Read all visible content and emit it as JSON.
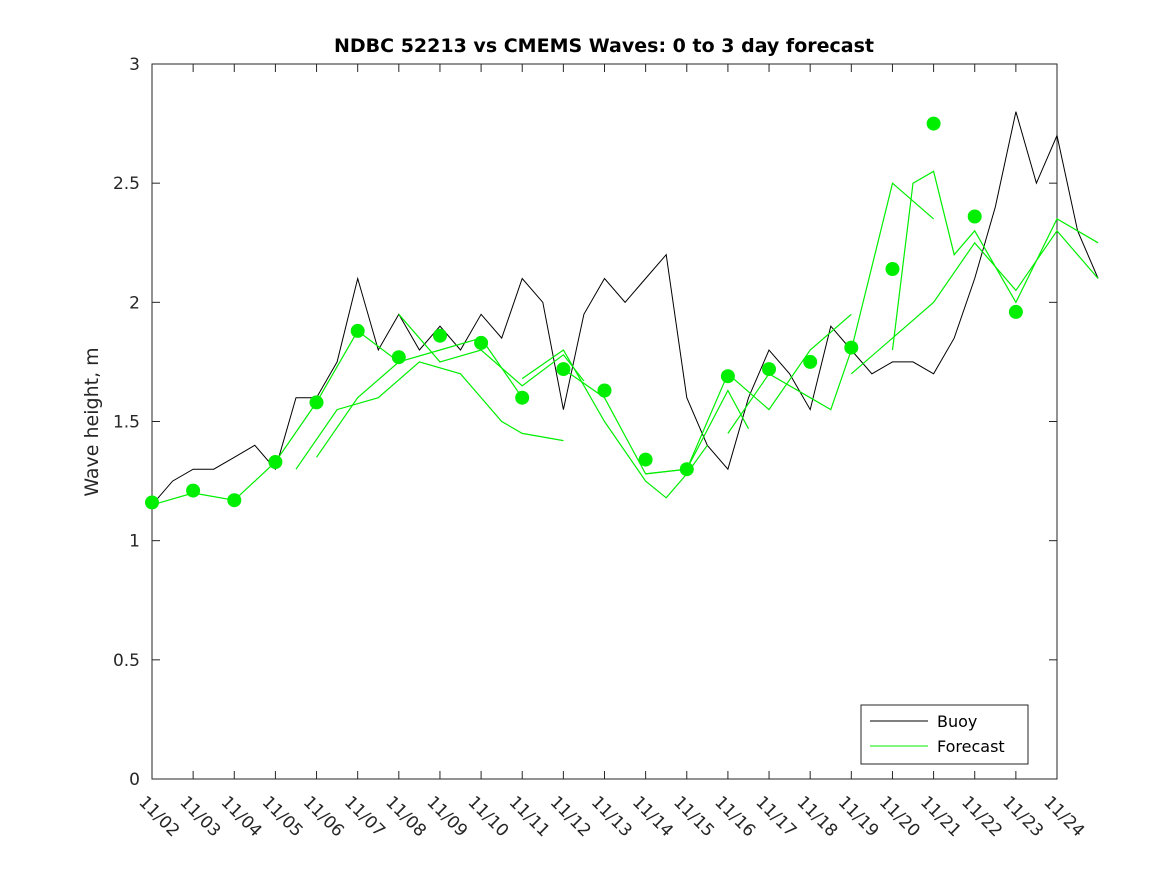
{
  "chart_data": {
    "type": "line",
    "title": "NDBC 52213 vs CMEMS Waves: 0 to 3 day forecast",
    "xlabel": "",
    "ylabel": "Wave height, m",
    "ylim": [
      0,
      3
    ],
    "yticks": [
      "0",
      "0.5",
      "1",
      "1.5",
      "2",
      "2.5",
      "3"
    ],
    "xlim": [
      "11/02",
      "11/24"
    ],
    "xticks": [
      "11/02",
      "11/03",
      "11/04",
      "11/05",
      "11/06",
      "11/07",
      "11/08",
      "11/09",
      "11/10",
      "11/11",
      "11/12",
      "11/13",
      "11/14",
      "11/15",
      "11/16",
      "11/17",
      "11/18",
      "11/19",
      "11/20",
      "11/21",
      "11/22",
      "11/23",
      "11/24"
    ],
    "grid": false,
    "legend": {
      "placement": "bottom-right",
      "entries": [
        "Buoy",
        "Forecast"
      ]
    },
    "colors": {
      "buoy": "#000000",
      "forecast": "#00ee00",
      "axes": "#262626"
    },
    "series": [
      {
        "name": "Buoy",
        "x_days_after_11_02": [
          0,
          0.5,
          1,
          1.5,
          2,
          2.5,
          3,
          3.5,
          4,
          4.5,
          5,
          5.5,
          6,
          6.5,
          7,
          7.5,
          8,
          8.5,
          9,
          9.5,
          10,
          10.5,
          11,
          11.5,
          12,
          12.5,
          13,
          13.5,
          14,
          14.5,
          15,
          15.5,
          16,
          16.5,
          17,
          17.5,
          18,
          18.5,
          19,
          19.5,
          20,
          20.5,
          21,
          21.5,
          22,
          22.5,
          23
        ],
        "values": [
          1.15,
          1.25,
          1.3,
          1.3,
          1.35,
          1.4,
          1.3,
          1.6,
          1.6,
          1.75,
          2.1,
          1.8,
          1.95,
          1.8,
          1.9,
          1.8,
          1.95,
          1.85,
          2.1,
          2.0,
          1.55,
          1.95,
          2.1,
          2.0,
          2.1,
          2.2,
          1.6,
          1.4,
          1.3,
          1.6,
          1.8,
          1.7,
          1.55,
          1.9,
          1.8,
          1.7,
          1.75,
          1.75,
          1.7,
          1.85,
          2.1,
          2.4,
          2.8,
          2.5,
          2.7,
          2.3,
          2.1
        ]
      },
      {
        "name": "Forecast",
        "segments": [
          {
            "x": [
              0,
              1,
              2,
              3,
              4,
              5,
              6
            ],
            "values": [
              1.15,
              1.2,
              1.17,
              1.33,
              1.58,
              1.88,
              1.75
            ]
          },
          {
            "x": [
              4,
              5,
              6,
              7,
              8,
              9
            ],
            "values": [
              1.35,
              1.6,
              1.75,
              1.8,
              1.85,
              1.6
            ]
          },
          {
            "x": [
              3.5,
              4.5,
              5.5,
              6.5,
              7.5,
              8.5,
              9,
              10
            ],
            "values": [
              1.3,
              1.55,
              1.6,
              1.75,
              1.7,
              1.5,
              1.45,
              1.42
            ]
          },
          {
            "x": [
              6,
              7,
              8,
              9,
              10,
              10.5
            ],
            "values": [
              1.95,
              1.75,
              1.8,
              1.65,
              1.78,
              1.67
            ]
          },
          {
            "x": [
              9,
              10,
              11,
              12,
              12.5,
              13,
              13.5
            ],
            "values": [
              1.68,
              1.8,
              1.5,
              1.25,
              1.18,
              1.28,
              1.4
            ]
          },
          {
            "x": [
              10,
              11,
              12,
              13,
              14,
              14.5
            ],
            "values": [
              1.72,
              1.6,
              1.28,
              1.3,
              1.63,
              1.47
            ]
          },
          {
            "x": [
              12,
              13,
              14,
              15,
              16,
              17
            ],
            "values": [
              1.28,
              1.3,
              1.7,
              1.55,
              1.8,
              1.95
            ]
          },
          {
            "x": [
              14,
              15,
              16,
              16.5,
              17,
              18,
              19
            ],
            "values": [
              1.45,
              1.7,
              1.6,
              1.55,
              1.8,
              2.5,
              2.35
            ]
          },
          {
            "x": [
              18,
              18.5,
              19,
              19.5,
              20,
              21,
              22,
              23
            ],
            "values": [
              1.8,
              2.5,
              2.55,
              2.2,
              2.3,
              2.0,
              2.35,
              2.25
            ]
          },
          {
            "x": [
              17,
              18,
              19,
              20,
              21,
              22,
              23
            ],
            "values": [
              1.7,
              1.85,
              2.0,
              2.25,
              2.05,
              2.3,
              2.1
            ]
          }
        ]
      }
    ],
    "forecast_markers": {
      "x": [
        0,
        1,
        2,
        3,
        4,
        5,
        6,
        7,
        8,
        9,
        10,
        11,
        12,
        13,
        14,
        15,
        16,
        17,
        18,
        19,
        20,
        21
      ],
      "values": [
        1.16,
        1.21,
        1.17,
        1.33,
        1.58,
        1.88,
        1.77,
        1.86,
        1.83,
        1.6,
        1.72,
        1.63,
        1.34,
        1.3,
        1.69,
        1.72,
        1.75,
        1.81,
        2.14,
        2.75,
        2.36,
        1.96
      ]
    }
  }
}
